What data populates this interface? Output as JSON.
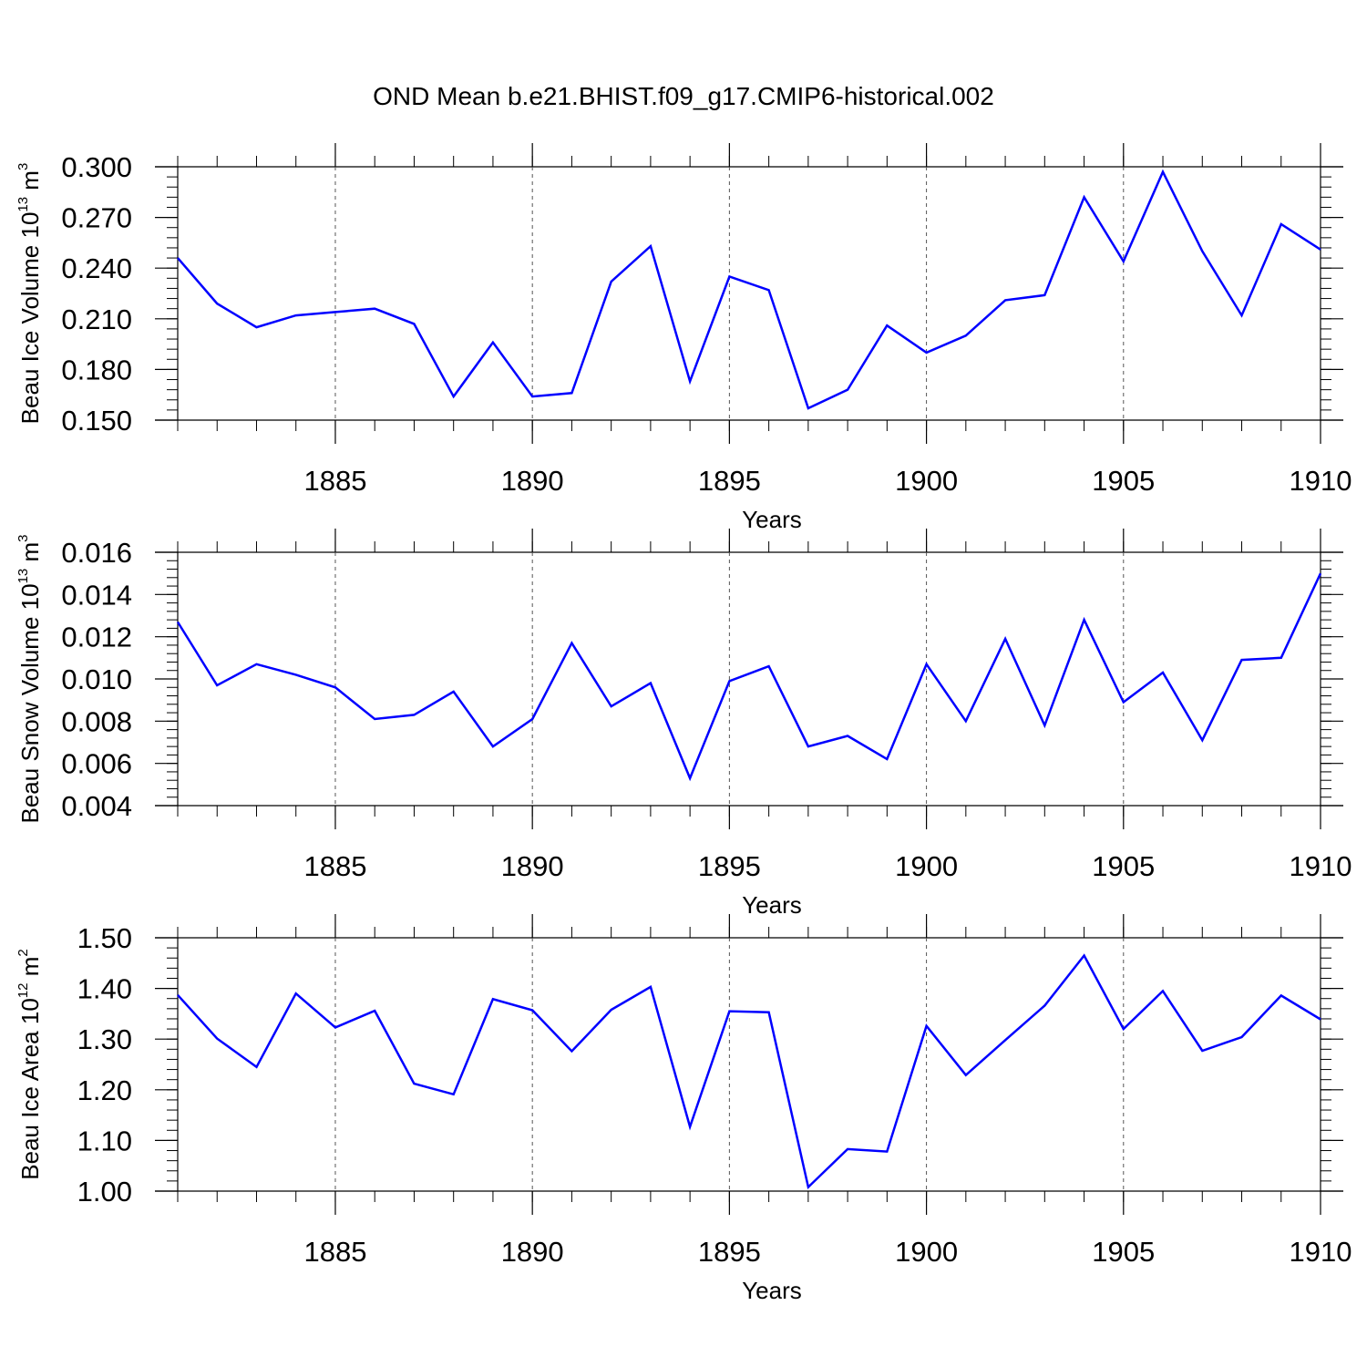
{
  "title": "OND Mean b.e21.BHIST.f09_g17.CMIP6-historical.002",
  "colors": {
    "series": "#0000ff",
    "axis": "#000000",
    "grid": "#555555"
  },
  "chart_data": [
    {
      "type": "line",
      "ylabel_text": "Beau Ice Volume 10",
      "ylabel_exp": "13",
      "ylabel_unit": " m",
      "ylabel_unit_exp": "3",
      "xlabel": "Years",
      "xlim": [
        1881,
        1910
      ],
      "ylim": [
        0.15,
        0.3
      ],
      "xticks": [
        1885,
        1890,
        1895,
        1900,
        1905,
        1910
      ],
      "yticks": [
        0.15,
        0.18,
        0.21,
        0.24,
        0.27,
        0.3
      ],
      "ytick_labels": [
        "0.150",
        "0.180",
        "0.210",
        "0.240",
        "0.270",
        "0.300"
      ],
      "x": [
        1881,
        1882,
        1883,
        1884,
        1885,
        1886,
        1887,
        1888,
        1889,
        1890,
        1891,
        1892,
        1893,
        1894,
        1895,
        1896,
        1897,
        1898,
        1899,
        1900,
        1901,
        1902,
        1903,
        1904,
        1905,
        1906,
        1907,
        1908,
        1909,
        1910
      ],
      "values": [
        0.246,
        0.219,
        0.205,
        0.212,
        0.214,
        0.216,
        0.207,
        0.164,
        0.196,
        0.164,
        0.166,
        0.232,
        0.253,
        0.173,
        0.235,
        0.227,
        0.157,
        0.168,
        0.206,
        0.19,
        0.2,
        0.221,
        0.224,
        0.282,
        0.244,
        0.297,
        0.25,
        0.212,
        0.266,
        0.251
      ]
    },
    {
      "type": "line",
      "ylabel_text": "Beau Snow Volume 10",
      "ylabel_exp": "13",
      "ylabel_unit": " m",
      "ylabel_unit_exp": "3",
      "xlabel": "Years",
      "xlim": [
        1881,
        1910
      ],
      "ylim": [
        0.004,
        0.016
      ],
      "xticks": [
        1885,
        1890,
        1895,
        1900,
        1905,
        1910
      ],
      "yticks": [
        0.004,
        0.006,
        0.008,
        0.01,
        0.012,
        0.014,
        0.016
      ],
      "ytick_labels": [
        "0.004",
        "0.006",
        "0.008",
        "0.010",
        "0.012",
        "0.014",
        "0.016"
      ],
      "x": [
        1881,
        1882,
        1883,
        1884,
        1885,
        1886,
        1887,
        1888,
        1889,
        1890,
        1891,
        1892,
        1893,
        1894,
        1895,
        1896,
        1897,
        1898,
        1899,
        1900,
        1901,
        1902,
        1903,
        1904,
        1905,
        1906,
        1907,
        1908,
        1909,
        1910
      ],
      "values": [
        0.0127,
        0.0097,
        0.0107,
        0.0102,
        0.0096,
        0.0081,
        0.0083,
        0.0094,
        0.0068,
        0.0081,
        0.0117,
        0.0087,
        0.0098,
        0.0053,
        0.0099,
        0.0106,
        0.0068,
        0.0073,
        0.0062,
        0.0107,
        0.008,
        0.0119,
        0.0078,
        0.0128,
        0.0089,
        0.0103,
        0.0071,
        0.0109,
        0.011,
        0.015
      ]
    },
    {
      "type": "line",
      "ylabel_text": "Beau Ice Area 10",
      "ylabel_exp": "12",
      "ylabel_unit": " m",
      "ylabel_unit_exp": "2",
      "xlabel": "Years",
      "xlim": [
        1881,
        1910
      ],
      "ylim": [
        1.0,
        1.5
      ],
      "xticks": [
        1885,
        1890,
        1895,
        1900,
        1905,
        1910
      ],
      "yticks": [
        1.0,
        1.1,
        1.2,
        1.3,
        1.4,
        1.5
      ],
      "ytick_labels": [
        "1.00",
        "1.10",
        "1.20",
        "1.30",
        "1.40",
        "1.50"
      ],
      "x": [
        1881,
        1882,
        1883,
        1884,
        1885,
        1886,
        1887,
        1888,
        1889,
        1890,
        1891,
        1892,
        1893,
        1894,
        1895,
        1896,
        1897,
        1898,
        1899,
        1900,
        1901,
        1902,
        1903,
        1904,
        1905,
        1906,
        1907,
        1908,
        1909,
        1910
      ],
      "values": [
        1.387,
        1.301,
        1.245,
        1.39,
        1.323,
        1.356,
        1.212,
        1.191,
        1.379,
        1.357,
        1.276,
        1.358,
        1.403,
        1.127,
        1.355,
        1.353,
        1.008,
        1.083,
        1.078,
        1.326,
        1.229,
        1.298,
        1.366,
        1.465,
        1.32,
        1.395,
        1.277,
        1.304,
        1.386,
        1.339
      ]
    }
  ]
}
